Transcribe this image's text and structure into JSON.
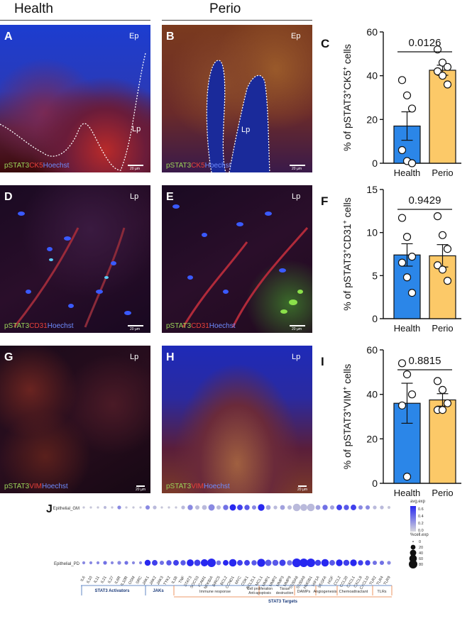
{
  "columns": {
    "health": "Health",
    "perio": "Perio"
  },
  "panels": {
    "A": {
      "letter": "A",
      "epi": "Ep",
      "lam": "Lp",
      "stain": [
        "pSTAT3",
        "CK5",
        "Hoechst"
      ],
      "scale": "20 µm"
    },
    "B": {
      "letter": "B",
      "epi": "Ep",
      "lam": "Lp",
      "stain": [
        "pSTAT3",
        "CK5",
        "Hoechst"
      ],
      "scale": "20 µm"
    },
    "D": {
      "letter": "D",
      "lam": "Lp",
      "stain": [
        "pSTAT3",
        "CD31",
        "Hoechst"
      ],
      "scale": "20 µm"
    },
    "E": {
      "letter": "E",
      "lam": "Lp",
      "stain": [
        "pSTAT3",
        "CD31",
        "Hoechst"
      ],
      "scale": "20 µm"
    },
    "G": {
      "letter": "G",
      "lam": "Lp",
      "stain": [
        "pSTAT3",
        "VIM",
        "Hoechst"
      ],
      "scale": "20 µm"
    },
    "H": {
      "letter": "H",
      "lam": "Lp",
      "stain": [
        "pSTAT3",
        "VIM",
        "Hoechst"
      ],
      "scale": "20 µm"
    },
    "J": {
      "letter": "J"
    }
  },
  "colors": {
    "health_bar": "#2b86e8",
    "perio_bar": "#fcc968",
    "green": "#9bd45a",
    "red": "#e8413a",
    "blue": "#4a6cff"
  },
  "chart_data": [
    {
      "letter": "C",
      "type": "bar",
      "categories": [
        "Health",
        "Perio"
      ],
      "values": [
        17,
        42.5
      ],
      "errors": [
        6.5,
        2.3
      ],
      "points": [
        [
          38,
          31,
          25,
          6,
          1,
          0
        ],
        [
          52,
          46,
          44,
          42,
          40,
          36
        ]
      ],
      "ylabel_parts": [
        "% of pSTAT3",
        "+",
        "CK5",
        "+",
        " cells"
      ],
      "ylim": [
        0,
        60
      ],
      "yticks": [
        "0",
        "20",
        "40",
        "60"
      ],
      "pvalue": "0.0126"
    },
    {
      "letter": "F",
      "type": "bar",
      "categories": [
        "Health",
        "Perio"
      ],
      "values": [
        7.4,
        7.3
      ],
      "errors": [
        1.3,
        1.3
      ],
      "points": [
        [
          11.7,
          9.5,
          7.2,
          6.5,
          4.8,
          3.0
        ],
        [
          11.9,
          9.7,
          8.1,
          6.2,
          5.7,
          4.4
        ]
      ],
      "ylabel_parts": [
        "% of pSTAT3",
        "+",
        "CD31",
        "+",
        " cells"
      ],
      "ylim": [
        0,
        15
      ],
      "yticks": [
        "0",
        "5",
        "10",
        "15"
      ],
      "pvalue": "0.9429"
    },
    {
      "letter": "I",
      "type": "bar",
      "categories": [
        "Health",
        "Perio"
      ],
      "values": [
        36,
        37.5
      ],
      "errors": [
        9,
        2.8
      ],
      "points": [
        [
          54,
          49,
          40,
          35,
          3
        ],
        [
          46,
          42,
          36,
          33,
          33
        ]
      ],
      "ylabel_parts": [
        "% of pSTAT3",
        "+",
        "VIM",
        "+",
        " cells"
      ],
      "ylim": [
        0,
        60
      ],
      "yticks": [
        "0",
        "20",
        "40",
        "60"
      ],
      "pvalue": "0.8815"
    },
    {
      "letter": "J",
      "type": "scatter",
      "rows": [
        "Epithelial_GM",
        "Epithelial_PD"
      ],
      "genes": [
        "IL6",
        "IL10",
        "IL11",
        "IL21",
        "IL27",
        "IL6R",
        "IL10R",
        "OSM",
        "SRC",
        "JAK1",
        "JAK2",
        "JAK3",
        "TYK2",
        "IL1B",
        "TNF",
        "STAT3",
        "SOCS3",
        "ICAM1",
        "NFKBIA",
        "BIRC5",
        "BCL2",
        "CCND1",
        "MYC",
        "CDK1",
        "BCL2L1",
        "MCL1",
        "MMP1",
        "MMP2",
        "MMP3",
        "MMP9",
        "S100A8",
        "S100A9",
        "HMGB1",
        "HIF1A",
        "VEGFA",
        "HGF",
        "CCL2",
        "CCL20",
        "CXCL1",
        "CXCL8",
        "CXCL10",
        "TLR2",
        "TLR4",
        "TLR9"
      ],
      "gm_exp": [
        0.05,
        0.05,
        0.05,
        0.1,
        0.05,
        0.3,
        0.05,
        0.05,
        0.05,
        0.3,
        0.1,
        0.05,
        0.05,
        0.05,
        0.1,
        0.3,
        0.1,
        0.1,
        0.3,
        0.1,
        0.4,
        0.8,
        0.6,
        0.5,
        0.3,
        0.7,
        0.2,
        0.1,
        0.2,
        0.1,
        0.1,
        0.1,
        0.1,
        0.2,
        0.4,
        0.2,
        0.6,
        0.5,
        0.6,
        0.3,
        0.3,
        0.1,
        0.1,
        0.05
      ],
      "gm_pct": [
        2,
        2,
        2,
        5,
        2,
        10,
        2,
        2,
        2,
        15,
        10,
        2,
        2,
        2,
        10,
        25,
        15,
        20,
        40,
        15,
        25,
        40,
        30,
        25,
        15,
        45,
        20,
        10,
        20,
        15,
        60,
        50,
        60,
        20,
        25,
        15,
        30,
        25,
        30,
        15,
        15,
        10,
        10,
        5
      ],
      "pd_exp": [
        0.3,
        0.3,
        0.3,
        0.4,
        0.3,
        0.3,
        0.4,
        0.3,
        0.3,
        0.7,
        0.6,
        0.4,
        0.5,
        0.6,
        0.5,
        0.7,
        0.6,
        0.7,
        0.8,
        0.4,
        0.7,
        0.8,
        0.6,
        0.6,
        0.5,
        0.8,
        0.5,
        0.5,
        0.6,
        0.4,
        0.8,
        0.8,
        0.8,
        0.6,
        0.7,
        0.5,
        0.7,
        0.6,
        0.7,
        0.6,
        0.6,
        0.4,
        0.4,
        0.3
      ],
      "pd_pct": [
        5,
        5,
        5,
        10,
        5,
        10,
        10,
        5,
        5,
        35,
        30,
        15,
        25,
        30,
        25,
        50,
        40,
        55,
        80,
        20,
        30,
        60,
        30,
        30,
        25,
        70,
        40,
        35,
        40,
        25,
        85,
        80,
        80,
        35,
        60,
        30,
        45,
        35,
        45,
        25,
        25,
        15,
        15,
        10
      ],
      "legend_exp_title": "avg.exp",
      "legend_exp_ticks": [
        "0.6",
        "0.4",
        "0.2",
        "0.0"
      ],
      "legend_pct_title": "%cell.exp",
      "legend_pct_ticks": [
        "0",
        "20",
        "40",
        "60",
        "80"
      ],
      "groups": [
        "STAT3 Activators",
        "JAKs"
      ],
      "subgroups": [
        "Immune response",
        "Cell proliferation Anti-apoptosis",
        "Tissue destruction",
        "DAMPs",
        "Angiogenesis",
        "Chemoattractant",
        "TLRs"
      ],
      "targets_label": "STAT3 Targets"
    }
  ]
}
